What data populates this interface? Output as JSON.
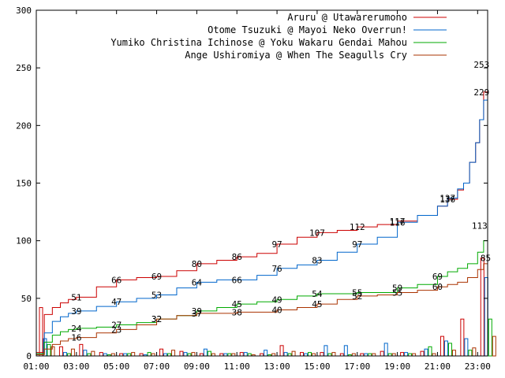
{
  "chart_data": {
    "type": "line",
    "title": "",
    "xlabel": "",
    "ylabel": "",
    "ylim": [
      0,
      300
    ],
    "xlim": [
      0,
      22.5
    ],
    "x_ticks": [
      {
        "label": "01:00",
        "v": 0
      },
      {
        "label": "03:00",
        "v": 2
      },
      {
        "label": "05:00",
        "v": 4
      },
      {
        "label": "07:00",
        "v": 6
      },
      {
        "label": "09:00",
        "v": 8
      },
      {
        "label": "11:00",
        "v": 10
      },
      {
        "label": "13:00",
        "v": 12
      },
      {
        "label": "15:00",
        "v": 14
      },
      {
        "label": "17:00",
        "v": 16
      },
      {
        "label": "19:00",
        "v": 18
      },
      {
        "label": "21:00",
        "v": 20
      },
      {
        "label": "23:00",
        "v": 22
      }
    ],
    "y_ticks": [
      "0",
      "50",
      "100",
      "150",
      "200",
      "250",
      "300"
    ],
    "legend_position": "top-right",
    "series": [
      {
        "name": "Aruru @ Utawarerumono",
        "color": "#cc0000",
        "x": [
          0,
          0.4,
          0.8,
          1.2,
          1.6,
          2,
          3,
          4,
          5,
          6,
          7,
          8,
          9,
          10,
          11,
          12,
          13,
          14,
          15,
          16,
          17,
          18,
          19,
          20,
          20.5,
          21,
          21.3,
          21.6,
          21.9,
          22.1,
          22.3,
          22.5
        ],
        "values": [
          3,
          36,
          42,
          46,
          49,
          51,
          60,
          66,
          68,
          69,
          74,
          80,
          83,
          86,
          89,
          97,
          103,
          107,
          109,
          112,
          114,
          117,
          122,
          130,
          136,
          144,
          150,
          168,
          185,
          205,
          229,
          253
        ],
        "labels": [
          {
            "x": 2,
            "y": 51,
            "t": "51"
          },
          {
            "x": 4,
            "y": 66,
            "t": "66"
          },
          {
            "x": 6,
            "y": 69,
            "t": "69"
          },
          {
            "x": 8,
            "y": 80,
            "t": "80"
          },
          {
            "x": 10,
            "y": 86,
            "t": "86"
          },
          {
            "x": 12,
            "y": 97,
            "t": "97"
          },
          {
            "x": 14,
            "y": 107,
            "t": "107"
          },
          {
            "x": 16,
            "y": 112,
            "t": "112"
          },
          {
            "x": 18,
            "y": 117,
            "t": "117"
          },
          {
            "x": 20.5,
            "y": 136,
            "t": "136"
          },
          {
            "x": 22.2,
            "y": 253,
            "t": "253"
          }
        ]
      },
      {
        "name": "Otome Tsuzuki @ Mayoi Neko Overrun!",
        "color": "#0066cc",
        "x": [
          0,
          0.4,
          0.8,
          1.2,
          1.6,
          2,
          3,
          4,
          5,
          6,
          7,
          8,
          9,
          10,
          11,
          12,
          13,
          14,
          15,
          16,
          17,
          18,
          19,
          20,
          20.5,
          21,
          21.3,
          21.6,
          21.9,
          22.1,
          22.3,
          22.5
        ],
        "values": [
          2,
          20,
          30,
          34,
          37,
          39,
          43,
          47,
          50,
          53,
          59,
          64,
          66,
          66,
          70,
          76,
          79,
          83,
          90,
          97,
          103,
          116,
          122,
          130,
          137,
          145,
          150,
          168,
          185,
          205,
          222,
          229
        ],
        "labels": [
          {
            "x": 2,
            "y": 39,
            "t": "39"
          },
          {
            "x": 4,
            "y": 47,
            "t": "47"
          },
          {
            "x": 6,
            "y": 53,
            "t": "53"
          },
          {
            "x": 8,
            "y": 64,
            "t": "64"
          },
          {
            "x": 10,
            "y": 66,
            "t": "66"
          },
          {
            "x": 12,
            "y": 76,
            "t": "76"
          },
          {
            "x": 14,
            "y": 83,
            "t": "83"
          },
          {
            "x": 16,
            "y": 97,
            "t": "97"
          },
          {
            "x": 18,
            "y": 116,
            "t": "116"
          },
          {
            "x": 20.5,
            "y": 137,
            "t": "137"
          },
          {
            "x": 22.2,
            "y": 229,
            "t": "229"
          }
        ]
      },
      {
        "name": "Yumiko Christina Ichinose @ Yoku Wakaru Gendai Mahou",
        "color": "#00aa00",
        "x": [
          0,
          0.4,
          0.8,
          1.2,
          1.6,
          2,
          3,
          4,
          5,
          6,
          7,
          8,
          9,
          10,
          11,
          12,
          13,
          14,
          15,
          16,
          17,
          18,
          19,
          20,
          20.5,
          21,
          21.5,
          22,
          22.3,
          22.5
        ],
        "values": [
          2,
          12,
          18,
          21,
          23,
          24,
          25,
          27,
          29,
          32,
          35,
          39,
          42,
          45,
          47,
          49,
          52,
          54,
          54,
          55,
          55,
          59,
          62,
          69,
          73,
          76,
          80,
          90,
          100,
          113
        ],
        "labels": [
          {
            "x": 2,
            "y": 24,
            "t": "24"
          },
          {
            "x": 4,
            "y": 27,
            "t": "27"
          },
          {
            "x": 6,
            "y": 32,
            "t": "32"
          },
          {
            "x": 8,
            "y": 39,
            "t": "39"
          },
          {
            "x": 10,
            "y": 45,
            "t": "45"
          },
          {
            "x": 12,
            "y": 49,
            "t": "49"
          },
          {
            "x": 14,
            "y": 54,
            "t": "54"
          },
          {
            "x": 16,
            "y": 55,
            "t": "55"
          },
          {
            "x": 18,
            "y": 59,
            "t": "59"
          },
          {
            "x": 20,
            "y": 69,
            "t": "69"
          },
          {
            "x": 22.1,
            "y": 113,
            "t": "113"
          }
        ]
      },
      {
        "name": "Ange Ushiromiya @ When The Seagulls Cry",
        "color": "#aa3300",
        "x": [
          0,
          0.4,
          0.8,
          1.2,
          1.6,
          2,
          3,
          4,
          5,
          6,
          7,
          8,
          9,
          10,
          11,
          12,
          13,
          14,
          15,
          16,
          17,
          18,
          19,
          20,
          20.5,
          21,
          21.5,
          22,
          22.3,
          22.5
        ],
        "values": [
          1,
          6,
          10,
          13,
          15,
          16,
          20,
          23,
          27,
          32,
          35,
          37,
          37,
          38,
          38,
          40,
          42,
          45,
          49,
          52,
          53,
          55,
          57,
          60,
          62,
          64,
          68,
          75,
          80,
          85
        ],
        "labels": [
          {
            "x": 2,
            "y": 16,
            "t": "16"
          },
          {
            "x": 4,
            "y": 23,
            "t": "23"
          },
          {
            "x": 6,
            "y": 32,
            "t": "32"
          },
          {
            "x": 8,
            "y": 37,
            "t": "37"
          },
          {
            "x": 10,
            "y": 38,
            "t": "38"
          },
          {
            "x": 12,
            "y": 40,
            "t": "40"
          },
          {
            "x": 14,
            "y": 45,
            "t": "45"
          },
          {
            "x": 16,
            "y": 52,
            "t": "52"
          },
          {
            "x": 18,
            "y": 55,
            "t": "55"
          },
          {
            "x": 20,
            "y": 60,
            "t": "60"
          },
          {
            "x": 22.4,
            "y": 85,
            "t": "85"
          }
        ]
      }
    ],
    "hourly_bars": [
      {
        "hour": 0,
        "v": [
          42,
          15,
          10,
          8
        ]
      },
      {
        "hour": 1,
        "v": [
          8,
          3,
          2,
          6
        ]
      },
      {
        "hour": 2,
        "v": [
          10,
          5,
          2,
          4
        ]
      },
      {
        "hour": 3,
        "v": [
          3,
          2,
          1,
          2
        ]
      },
      {
        "hour": 4,
        "v": [
          2,
          2,
          2,
          3
        ]
      },
      {
        "hour": 5,
        "v": [
          2,
          1,
          3,
          2
        ]
      },
      {
        "hour": 6,
        "v": [
          6,
          2,
          2,
          5
        ]
      },
      {
        "hour": 7,
        "v": [
          4,
          3,
          2,
          3
        ]
      },
      {
        "hour": 8,
        "v": [
          2,
          6,
          4,
          2
        ]
      },
      {
        "hour": 9,
        "v": [
          2,
          2,
          2,
          2
        ]
      },
      {
        "hour": 10,
        "v": [
          3,
          3,
          2,
          1
        ]
      },
      {
        "hour": 11,
        "v": [
          2,
          5,
          1,
          2
        ]
      },
      {
        "hour": 12,
        "v": [
          9,
          3,
          2,
          4
        ]
      },
      {
        "hour": 13,
        "v": [
          3,
          2,
          3,
          2
        ]
      },
      {
        "hour": 14,
        "v": [
          3,
          9,
          2,
          3
        ]
      },
      {
        "hour": 15,
        "v": [
          2,
          9,
          1,
          2
        ]
      },
      {
        "hour": 16,
        "v": [
          2,
          2,
          2,
          2
        ]
      },
      {
        "hour": 17,
        "v": [
          4,
          11,
          2,
          2
        ]
      },
      {
        "hour": 18,
        "v": [
          3,
          3,
          2,
          2
        ]
      },
      {
        "hour": 19,
        "v": [
          4,
          6,
          8,
          2
        ]
      },
      {
        "hour": 20,
        "v": [
          17,
          13,
          11,
          5
        ]
      },
      {
        "hour": 21,
        "v": [
          32,
          15,
          5,
          7
        ]
      },
      {
        "hour": 22,
        "v": [
          85,
          68,
          32,
          17
        ]
      }
    ]
  }
}
